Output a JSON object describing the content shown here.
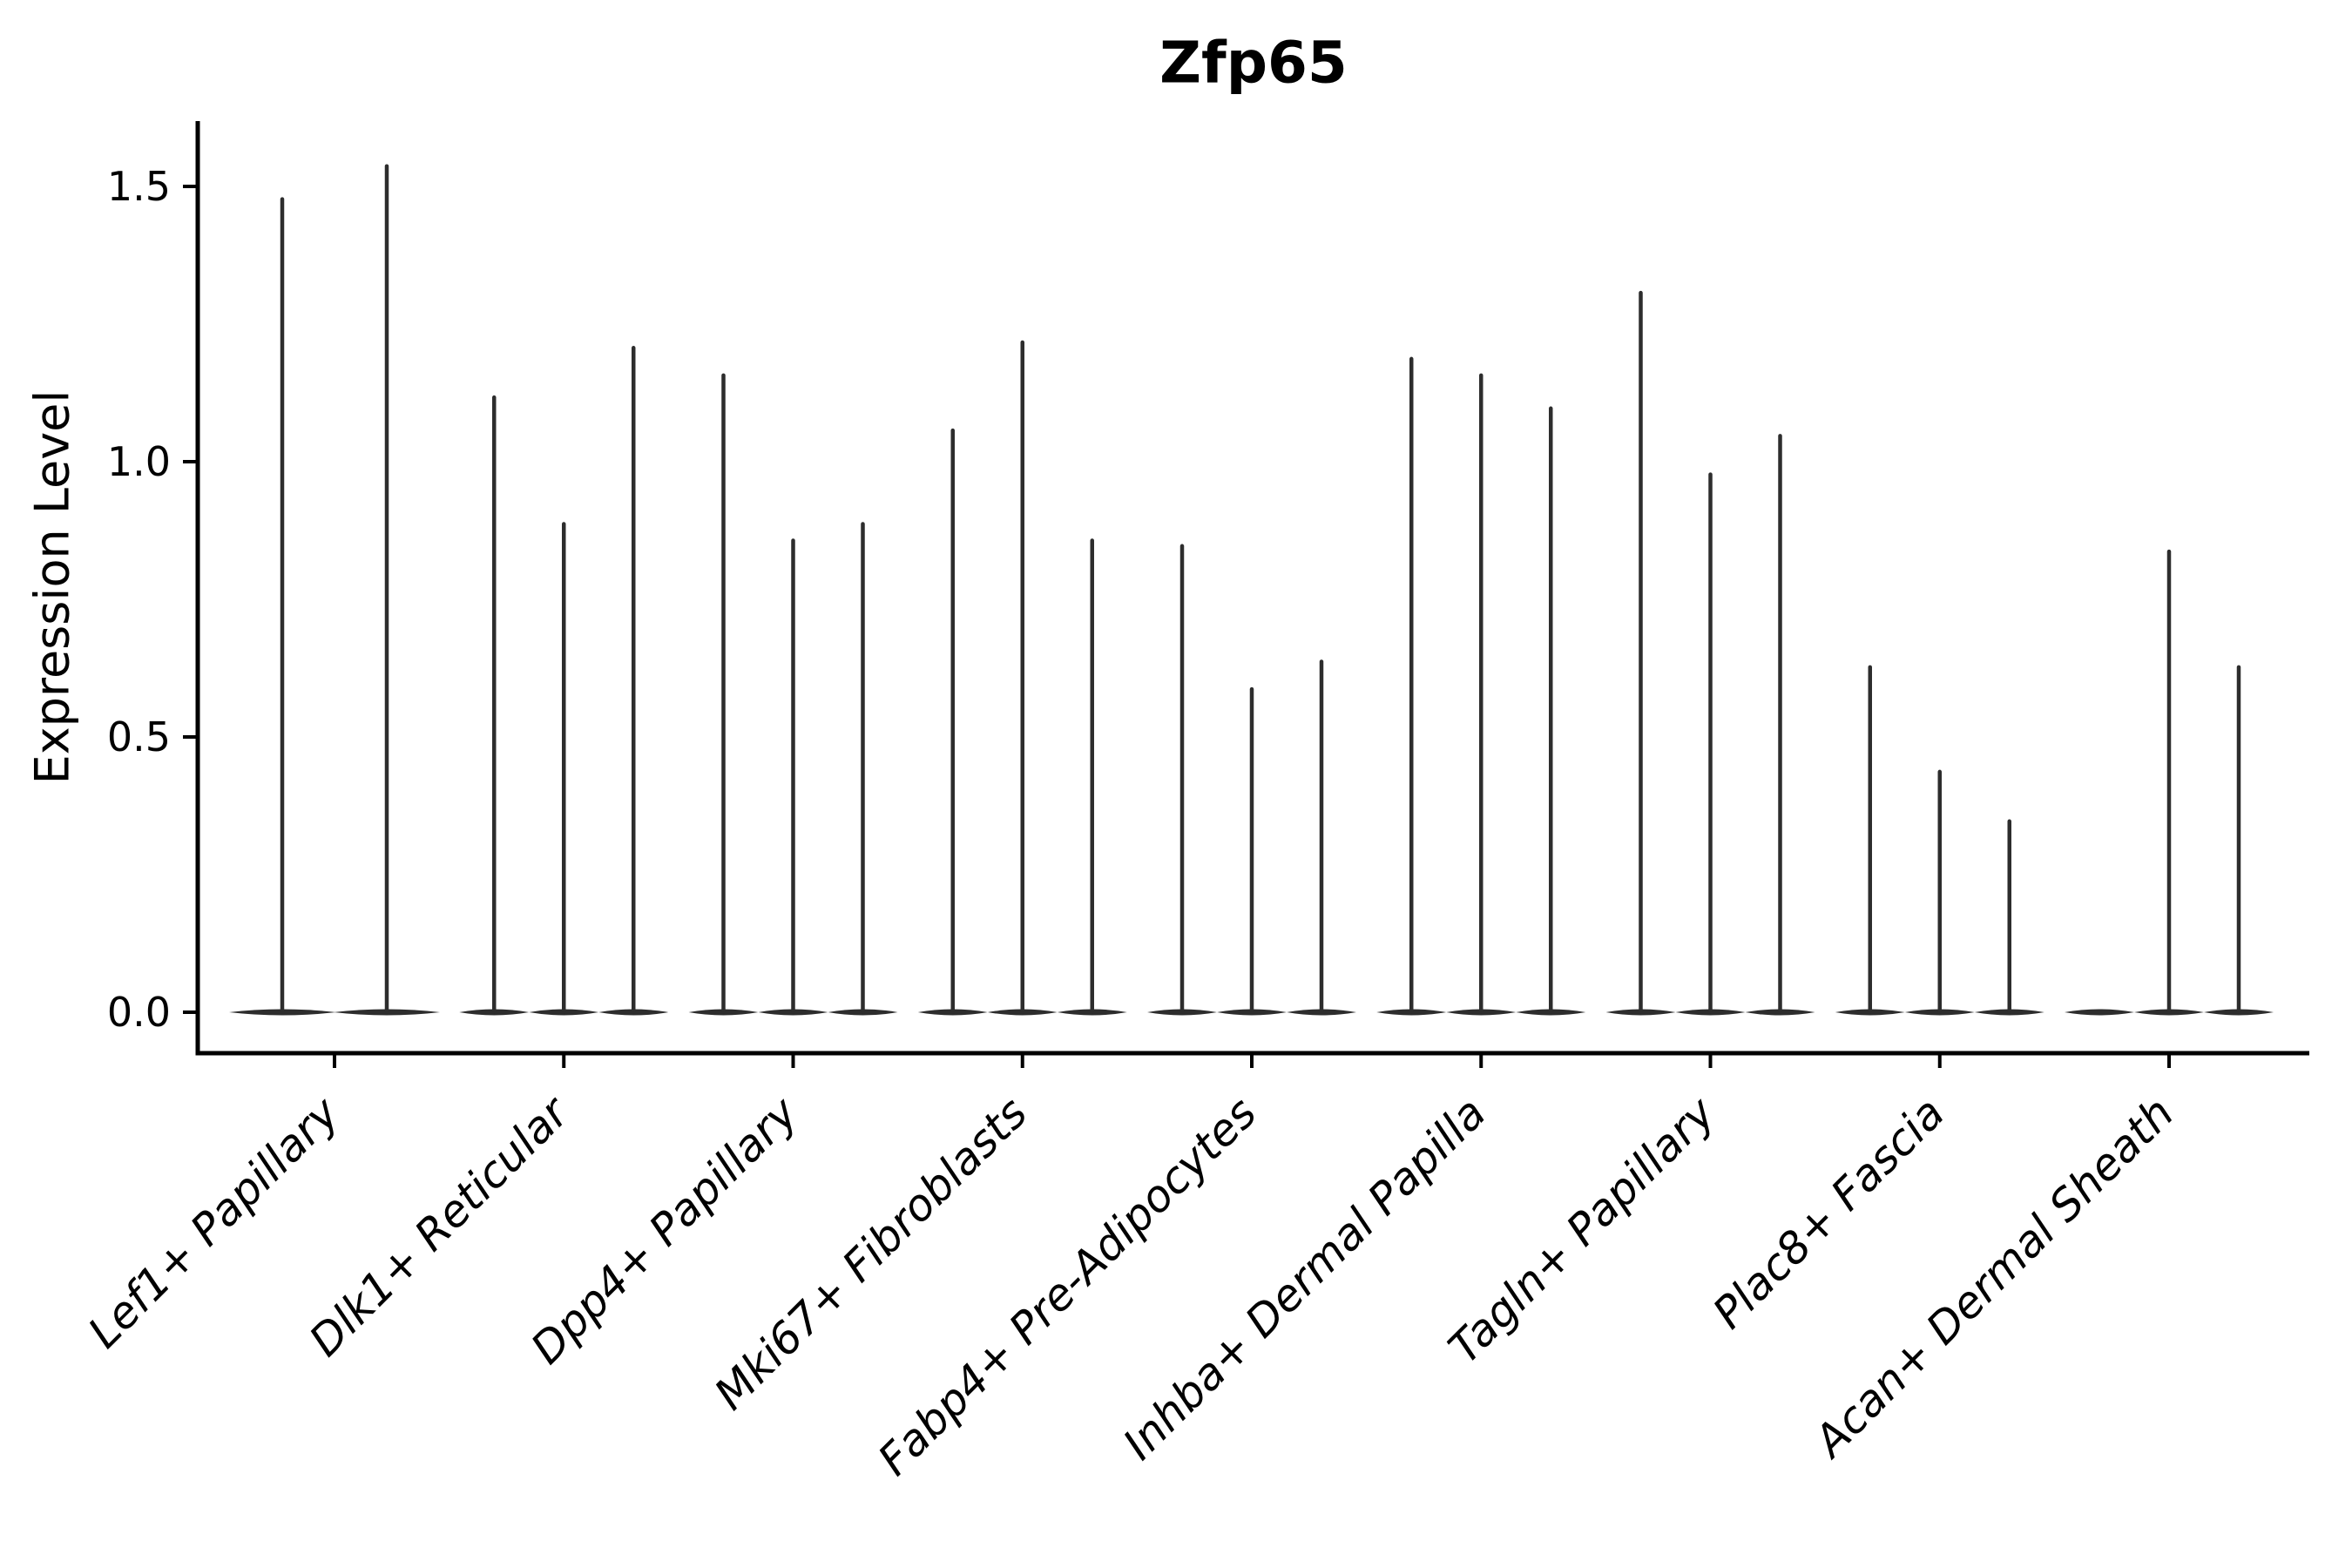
{
  "title": "Zfp65",
  "y_axis": {
    "label": "Expression Level"
  },
  "chart_data": {
    "type": "violin",
    "title": "Zfp65",
    "xlabel": "",
    "ylabel": "Expression Level",
    "ylim": [
      0,
      1.6
    ],
    "yticks": [
      0.0,
      0.5,
      1.0,
      1.5
    ],
    "grid": false,
    "legend": false,
    "categories": [
      "Lef1+ Papillary",
      "Dlk1+ Reticular",
      "Dpp4+ Papillary",
      "Mki67+ Fibroblasts",
      "Fabp4+ Pre-Adipocytes",
      "Inhba+ Dermal Papilla",
      "Tagln+ Papillary",
      "Plac8+ Fascia",
      "Acan+ Dermal Sheath"
    ],
    "series": [
      {
        "category": "Lef1+ Papillary",
        "violin_max_expression": [
          1.48,
          1.54
        ]
      },
      {
        "category": "Dlk1+ Reticular",
        "violin_max_expression": [
          1.12,
          0.89,
          1.21
        ]
      },
      {
        "category": "Dpp4+ Papillary",
        "violin_max_expression": [
          1.16,
          0.86,
          0.89
        ]
      },
      {
        "category": "Mki67+ Fibroblasts",
        "violin_max_expression": [
          1.06,
          1.22,
          0.86
        ]
      },
      {
        "category": "Fabp4+ Pre-Adipocytes",
        "violin_max_expression": [
          0.85,
          0.59,
          0.64
        ]
      },
      {
        "category": "Inhba+ Dermal Papilla",
        "violin_max_expression": [
          1.19,
          1.16,
          1.1
        ]
      },
      {
        "category": "Tagln+ Papillary",
        "violin_max_expression": [
          1.31,
          0.98,
          1.05
        ]
      },
      {
        "category": "Plac8+ Fascia",
        "violin_max_expression": [
          0.63,
          0.44,
          0.35
        ]
      },
      {
        "category": "Acan+ Dermal Sheath",
        "violin_max_expression": [
          0.0,
          0.84,
          0.63
        ]
      }
    ],
    "colors": {
      "violin": "#2d2d2d",
      "axis": "#000000",
      "text": "#000000"
    }
  }
}
